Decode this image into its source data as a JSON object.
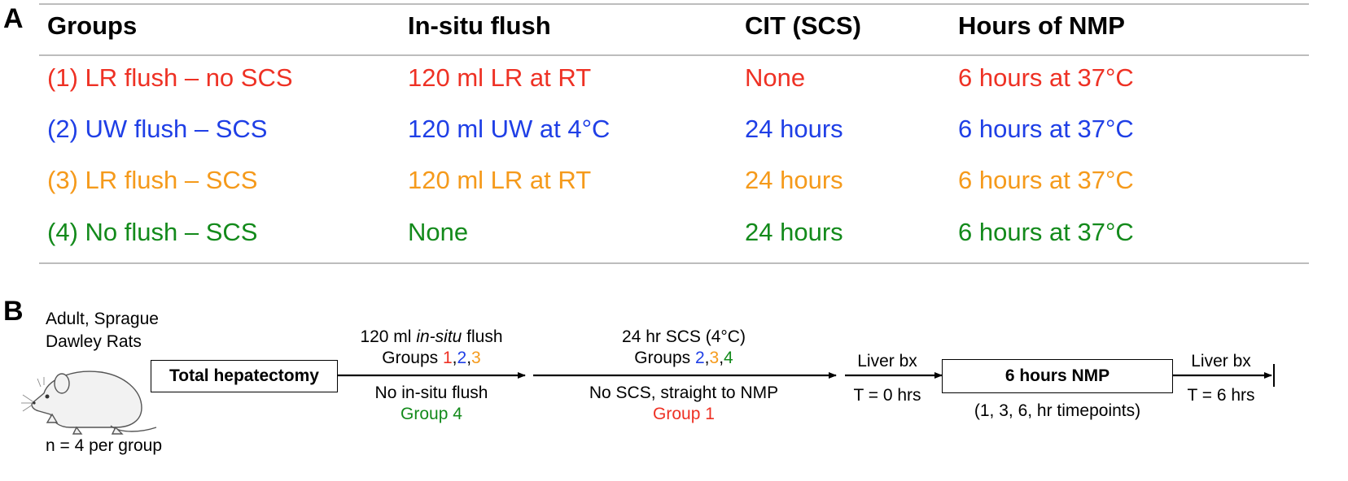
{
  "colors": {
    "group1": "#ee3124",
    "group2": "#1f3fe6",
    "group3": "#f59a1b",
    "group4": "#138a1b"
  },
  "panel_a": {
    "label": "A",
    "headers": [
      "Groups",
      "In-situ flush",
      "CIT (SCS)",
      "Hours of NMP"
    ],
    "rows": [
      {
        "group": "(1) LR flush – no SCS",
        "flush": "120 ml LR at RT",
        "cit": "None",
        "nmp": "6 hours at 37°C",
        "color": "#ee3124"
      },
      {
        "group": "(2) UW flush – SCS",
        "flush": "120 ml UW at 4°C",
        "cit": "24 hours",
        "nmp": "6 hours at 37°C",
        "color": "#1f3fe6"
      },
      {
        "group": "(3) LR flush – SCS",
        "flush": "120 ml LR at RT",
        "cit": "24 hours",
        "nmp": "6 hours at 37°C",
        "color": "#f59a1b"
      },
      {
        "group": "(4) No flush – SCS",
        "flush": "None",
        "cit": "24 hours",
        "nmp": "6 hours at 37°C",
        "color": "#138a1b"
      }
    ]
  },
  "panel_b": {
    "label": "B",
    "rat_line1": "Adult, Sprague",
    "rat_line2": "Dawley Rats",
    "rat_icon": "rat-icon",
    "n_label": "n = 4 per group",
    "step1_box": "Total hepatectomy",
    "flush_above_prefix": "120 ml ",
    "flush_above_italic": "in-situ",
    "flush_above_suffix": " flush",
    "flush_groups_prefix": "Groups ",
    "flush_groups": [
      "1",
      "2",
      "3"
    ],
    "flush_below": "No in-situ flush",
    "flush_below_group": "Group 4",
    "scs_above": "24 hr SCS (4°C)",
    "scs_groups_prefix": "Groups ",
    "scs_groups": [
      "2",
      "3",
      "4"
    ],
    "scs_below": "No SCS, straight to NMP",
    "scs_below_group": "Group 1",
    "biopsy1_above": "Liver bx",
    "biopsy1_below": "T = 0 hrs",
    "nmp_box": "6 hours NMP",
    "nmp_below": "(1, 3, 6, hr timepoints)",
    "biopsy2_above": "Liver bx",
    "biopsy2_below": "T = 6 hrs"
  }
}
